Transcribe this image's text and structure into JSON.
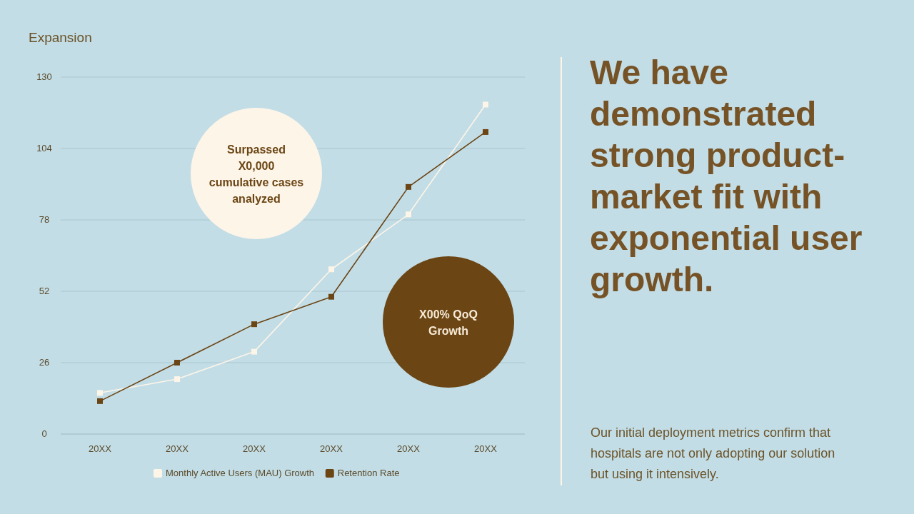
{
  "chart_data": {
    "type": "line",
    "title": "Expansion",
    "subtitle": "We have demonstrated strong product-market fit with exponential user growth.",
    "categories": [
      "20XX",
      "20XX",
      "20XX",
      "20XX",
      "20XX",
      "20XX"
    ],
    "series": [
      {
        "name": "Monthly Active Users (MAU) Growth",
        "color": "#fdf5e8",
        "values": [
          15,
          20,
          30,
          60,
          80,
          120
        ]
      },
      {
        "name": "Retention Rate",
        "color": "#6b4514",
        "values": [
          12,
          26,
          40,
          50,
          90,
          110
        ]
      }
    ],
    "ylim": [
      0,
      130
    ],
    "yticks": [
      0,
      26,
      52,
      78,
      104,
      130
    ],
    "grid": "y",
    "legend": "bottom",
    "marker": "square",
    "line_style": "solid",
    "annotations": [
      "Surpassed X0,000 cumulative cases analyzed",
      "X00% QoQ Growth",
      "Our initial deployment metrics confirm that hospitals are not only adopting our solution but using it intensively."
    ]
  }
}
